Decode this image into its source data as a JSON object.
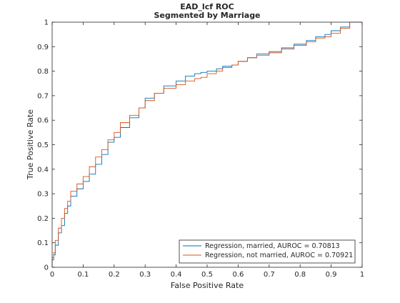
{
  "chart_data": {
    "type": "line",
    "title": "EAD_lcf ROC",
    "subtitle": "Segmented by Marriage",
    "xlabel": "False Positive Rate",
    "ylabel": "True Positive Rate",
    "xlim": [
      0,
      1
    ],
    "ylim": [
      0,
      1
    ],
    "xticks": [
      "0",
      "0.1",
      "0.2",
      "0.3",
      "0.4",
      "0.5",
      "0.6",
      "0.7",
      "0.8",
      "0.9",
      "1"
    ],
    "yticks": [
      "0",
      "0.1",
      "0.2",
      "0.3",
      "0.4",
      "0.5",
      "0.6",
      "0.7",
      "0.8",
      "0.9",
      "1"
    ],
    "grid": false,
    "legend_position": "bottom-right",
    "series": [
      {
        "name": "Regression, married, AUROC = 0.70813",
        "color": "#0072BD",
        "x": [
          0,
          0.005,
          0.01,
          0.02,
          0.03,
          0.04,
          0.05,
          0.06,
          0.08,
          0.1,
          0.12,
          0.14,
          0.16,
          0.18,
          0.2,
          0.22,
          0.25,
          0.28,
          0.3,
          0.33,
          0.36,
          0.4,
          0.43,
          0.46,
          0.48,
          0.5,
          0.53,
          0.55,
          0.58,
          0.6,
          0.63,
          0.66,
          0.7,
          0.74,
          0.78,
          0.82,
          0.85,
          0.88,
          0.9,
          0.93,
          0.96,
          1
        ],
        "y": [
          0,
          0.03,
          0.05,
          0.09,
          0.14,
          0.17,
          0.22,
          0.25,
          0.29,
          0.32,
          0.35,
          0.38,
          0.42,
          0.46,
          0.51,
          0.53,
          0.57,
          0.61,
          0.65,
          0.69,
          0.71,
          0.74,
          0.76,
          0.78,
          0.79,
          0.795,
          0.8,
          0.81,
          0.82,
          0.825,
          0.84,
          0.855,
          0.87,
          0.88,
          0.895,
          0.91,
          0.925,
          0.94,
          0.95,
          0.965,
          0.98,
          1
        ]
      },
      {
        "name": "Regression, not married, AUROC = 0.70921",
        "color": "#D95319",
        "x": [
          0,
          0.005,
          0.01,
          0.02,
          0.03,
          0.04,
          0.05,
          0.06,
          0.08,
          0.1,
          0.12,
          0.14,
          0.16,
          0.18,
          0.2,
          0.22,
          0.25,
          0.28,
          0.3,
          0.33,
          0.36,
          0.4,
          0.43,
          0.46,
          0.48,
          0.5,
          0.53,
          0.55,
          0.58,
          0.6,
          0.63,
          0.66,
          0.7,
          0.74,
          0.78,
          0.82,
          0.85,
          0.88,
          0.9,
          0.93,
          0.96,
          1
        ],
        "y": [
          0,
          0.04,
          0.06,
          0.11,
          0.16,
          0.2,
          0.24,
          0.27,
          0.31,
          0.34,
          0.37,
          0.41,
          0.45,
          0.48,
          0.52,
          0.55,
          0.59,
          0.62,
          0.65,
          0.68,
          0.71,
          0.73,
          0.745,
          0.76,
          0.77,
          0.775,
          0.79,
          0.8,
          0.815,
          0.825,
          0.84,
          0.855,
          0.865,
          0.875,
          0.89,
          0.905,
          0.92,
          0.935,
          0.94,
          0.955,
          0.975,
          1
        ]
      }
    ]
  }
}
